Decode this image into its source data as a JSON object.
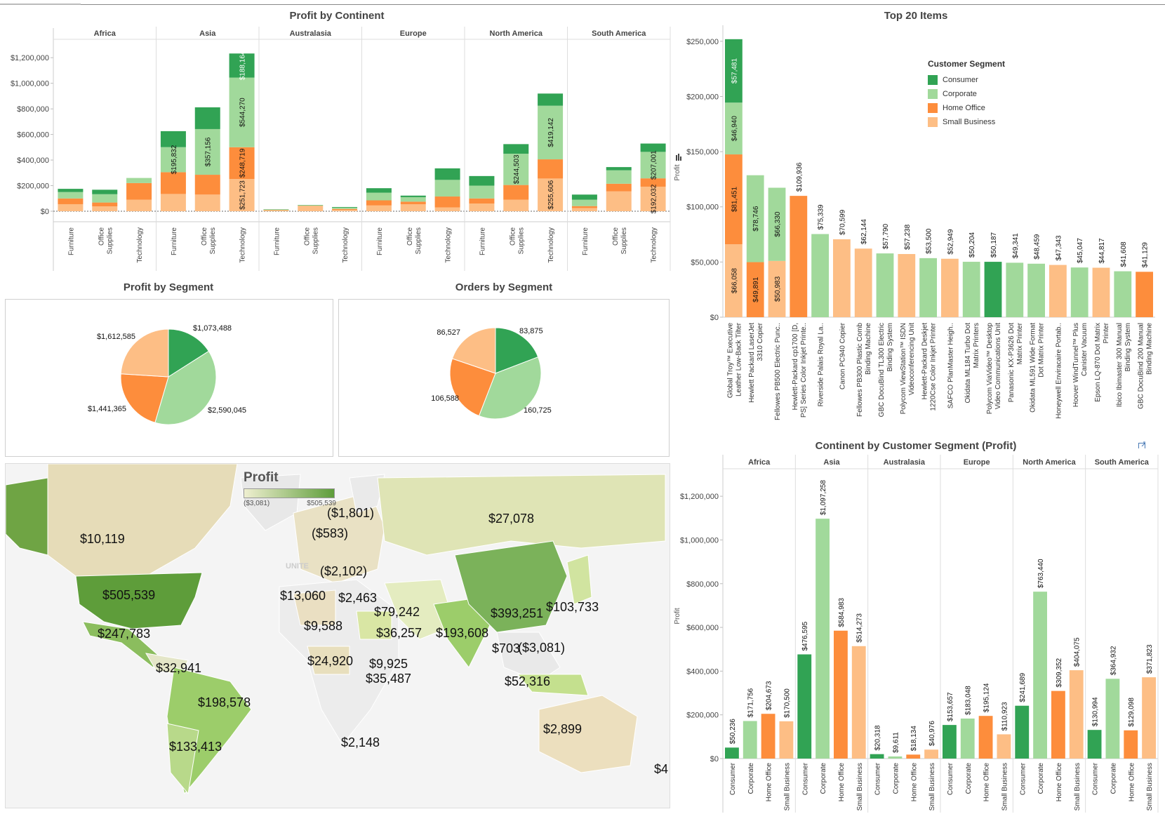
{
  "colors": {
    "consumer": "#31a354",
    "corporate": "#a1d99b",
    "home_office": "#fd8d3c",
    "small_business": "#fdbe85"
  },
  "panels": {
    "profit_by_continent": "Profit by Continent",
    "top20": "Top 20 Items",
    "profit_by_segment": "Profit by Segment",
    "orders_by_segment": "Orders by Segment",
    "continent_by_segment": "Continent by Customer Segment (Profit)"
  },
  "legend": {
    "title": "Customer Segment",
    "items": [
      "Consumer",
      "Corporate",
      "Home Office",
      "Small Business"
    ]
  },
  "map": {
    "title": "Profit",
    "min_label": "($3,081)",
    "max_label": "$505,539",
    "labels": [
      "$10,119",
      "$505,539",
      "$247,783",
      "$32,941",
      "$198,578",
      "$133,413",
      "($1,801)",
      "($583)",
      "($2,102)",
      "$13,060",
      "$2,463",
      "$79,242",
      "$9,588",
      "$36,257",
      "$24,920",
      "$9,925",
      "$35,487",
      "$2,148",
      "$27,078",
      "$193,608",
      "$393,251",
      "$103,733",
      "$703",
      "($3,081)",
      "$52,316",
      "$2,899",
      "$4"
    ],
    "faded_label": "UNITE"
  },
  "chart_data": [
    {
      "type": "bar",
      "stacked": true,
      "title": "Profit by Continent",
      "ylabel": "",
      "ylim": [
        0,
        1300000
      ],
      "yticks": [
        "$0",
        "$200,000",
        "$400,000",
        "$600,000",
        "$800,000",
        "$1,000,000",
        "$1,200,000"
      ],
      "ytick_values": [
        0,
        200000,
        400000,
        600000,
        800000,
        1000000,
        1200000
      ],
      "groups": [
        "Africa",
        "Asia",
        "Australasia",
        "Europe",
        "North America",
        "South America"
      ],
      "categories": [
        "Furniture",
        "Office Supplies",
        "Technology"
      ],
      "category_labels": [
        [
          "Furniture"
        ],
        [
          "Office",
          "Supplies"
        ],
        [
          "Technology"
        ]
      ],
      "series_order": [
        "Small Business",
        "Home Office",
        "Corporate",
        "Consumer"
      ],
      "values": [
        [
          [
            55000,
            45000,
            50000,
            25000
          ],
          [
            38000,
            30000,
            65000,
            35000
          ],
          [
            90000,
            130000,
            40000,
            0
          ]
        ],
        [
          [
            135000,
            170000,
            195832,
            125000
          ],
          [
            130000,
            155000,
            357156,
            170000
          ],
          [
            251723,
            248719,
            544270,
            188164
          ]
        ],
        [
          [
            5000,
            4000,
            4000,
            2000
          ],
          [
            40000,
            3000,
            4000,
            2000
          ],
          [
            10000,
            8000,
            10000,
            5000
          ]
        ],
        [
          [
            45000,
            40000,
            60000,
            35000
          ],
          [
            55000,
            20000,
            35000,
            12000
          ],
          [
            30000,
            85000,
            130000,
            90000
          ]
        ],
        [
          [
            60000,
            40000,
            100000,
            75000
          ],
          [
            90000,
            115000,
            244503,
            75000
          ],
          [
            255606,
            150000,
            419142,
            95000
          ]
        ],
        [
          [
            25000,
            15000,
            50000,
            40000
          ],
          [
            155000,
            60000,
            105000,
            25000
          ],
          [
            192032,
            65000,
            207001,
            65000
          ]
        ]
      ],
      "data_labels": [
        {
          "g": 1,
          "c": 0,
          "s": 2,
          "text": "$195,832"
        },
        {
          "g": 1,
          "c": 1,
          "s": 2,
          "text": "$357,156"
        },
        {
          "g": 1,
          "c": 2,
          "s": 0,
          "text": "$251,723"
        },
        {
          "g": 1,
          "c": 2,
          "s": 1,
          "text": "$248,719"
        },
        {
          "g": 1,
          "c": 2,
          "s": 2,
          "text": "$544,270"
        },
        {
          "g": 1,
          "c": 2,
          "s": 3,
          "text": "$188,164"
        },
        {
          "g": 4,
          "c": 1,
          "s": 2,
          "text": "$244,503"
        },
        {
          "g": 4,
          "c": 2,
          "s": 0,
          "text": "$255,606"
        },
        {
          "g": 4,
          "c": 2,
          "s": 2,
          "text": "$419,142"
        },
        {
          "g": 5,
          "c": 2,
          "s": 0,
          "text": "$192,032"
        },
        {
          "g": 5,
          "c": 2,
          "s": 2,
          "text": "$207,001"
        }
      ]
    },
    {
      "type": "bar",
      "stacked": true,
      "title": "Top 20 Items",
      "ylabel": "Profit",
      "ylim": [
        0,
        262000
      ],
      "yticks": [
        "$0",
        "$50,000",
        "$100,000",
        "$150,000",
        "$200,000",
        "$250,000"
      ],
      "ytick_values": [
        0,
        50000,
        100000,
        150000,
        200000,
        250000
      ],
      "categories": [
        [
          "Global Troy™ Executive",
          "Leather Low-Back Tilter"
        ],
        [
          "Hewlett Packard LaserJet",
          "3310 Copier"
        ],
        [
          "Fellowes PB500 Electric Punc.."
        ],
        [
          "Hewlett-Packard cp1700 [D,",
          "PS] Series Color Inkjet Printe.."
        ],
        [
          "Riverside Palais Royal La.."
        ],
        [
          "Canon PC940 Copier"
        ],
        [
          "Fellowes PB300 Plastic Comb",
          "Binding Machine"
        ],
        [
          "GBC DocuBind TL300 Electric",
          "Binding System"
        ],
        [
          "Polycom ViewStation™ ISDN",
          "Videoconferencing Unit"
        ],
        [
          "Hewlett-Packard Deskjet",
          "1220Cse Color Inkjet Printer"
        ],
        [
          "SAFCO PlanMaster Heigh.."
        ],
        [
          "Okidata ML184 Turbo Dot",
          "Matrix Printers"
        ],
        [
          "Polycom ViaVideo™ Desktop",
          "Video Communications Unit"
        ],
        [
          "Panasonic KX-P3626 Dot",
          "Matrix Printer"
        ],
        [
          "Okidata ML591 Wide Format",
          "Dot Matrix Printer"
        ],
        [
          "Honeywell Enviracaire Portab.."
        ],
        [
          "Hoover WindTunnel™ Plus",
          "Canister Vacuum"
        ],
        [
          "Epson LQ-870 Dot Matrix",
          "Printer"
        ],
        [
          "Ibico Ibimaster 300 Manual",
          "Binding System"
        ],
        [
          "GBC DocuBind 200 Manual",
          "Binding Machine"
        ]
      ],
      "series_order": [
        "Small Business",
        "Home Office",
        "Corporate",
        "Consumer"
      ],
      "values": [
        [
          66058,
          81451,
          46940,
          57481
        ],
        [
          0,
          49891,
          78746,
          0
        ],
        [
          50983,
          0,
          66330,
          0
        ],
        [
          0,
          109936,
          0,
          0
        ],
        [
          0,
          0,
          75339,
          0
        ],
        [
          70599,
          0,
          0,
          0
        ],
        [
          62144,
          0,
          0,
          0
        ],
        [
          0,
          0,
          57790,
          0
        ],
        [
          57238,
          0,
          0,
          0
        ],
        [
          0,
          0,
          53500,
          0
        ],
        [
          52949,
          0,
          0,
          0
        ],
        [
          0,
          0,
          50204,
          0
        ],
        [
          0,
          0,
          0,
          50187
        ],
        [
          0,
          0,
          49341,
          0
        ],
        [
          0,
          0,
          48459,
          0
        ],
        [
          47343,
          0,
          0,
          0
        ],
        [
          0,
          0,
          45047,
          0
        ],
        [
          44817,
          0,
          0,
          0
        ],
        [
          0,
          0,
          41608,
          0
        ],
        [
          0,
          41129,
          0,
          0
        ]
      ],
      "inside_labels": [
        {
          "i": 0,
          "s": 0,
          "text": "$66,058"
        },
        {
          "i": 0,
          "s": 1,
          "text": "$81,451"
        },
        {
          "i": 0,
          "s": 2,
          "text": "$46,940"
        },
        {
          "i": 0,
          "s": 3,
          "text": "$57,481"
        },
        {
          "i": 1,
          "s": 1,
          "text": "$49,891"
        },
        {
          "i": 1,
          "s": 2,
          "text": "$78,746"
        },
        {
          "i": 2,
          "s": 0,
          "text": "$50,983"
        },
        {
          "i": 2,
          "s": 2,
          "text": "$66,330"
        }
      ],
      "top_labels": [
        "",
        "",
        "",
        "$109,936",
        "$75,339",
        "$70,599",
        "$62,144",
        "$57,790",
        "$57,238",
        "$53,500",
        "$52,949",
        "$50,204",
        "$50,187",
        "$49,341",
        "$48,459",
        "$47,343",
        "$45,047",
        "$44,817",
        "$41,608",
        "$41,129"
      ]
    },
    {
      "type": "pie",
      "title": "Profit by Segment",
      "labels": [
        "Consumer",
        "Corporate",
        "Home Office",
        "Small Business"
      ],
      "values": [
        1073488,
        2590045,
        1441365,
        1612585
      ],
      "value_labels": [
        "$1,073,488",
        "$2,590,045",
        "$1,441,365",
        "$1,612,585"
      ]
    },
    {
      "type": "pie",
      "title": "Orders by Segment",
      "labels": [
        "Consumer",
        "Corporate",
        "Home Office",
        "Small Business"
      ],
      "values": [
        83875,
        160725,
        106588,
        86527
      ],
      "value_labels": [
        "83,875",
        "160,725",
        "106,588",
        "86,527"
      ]
    },
    {
      "type": "bar",
      "title": "Continent by Customer Segment (Profit)",
      "ylabel": "Profit",
      "ylim": [
        0,
        1300000
      ],
      "yticks": [
        "$0",
        "$200,000",
        "$400,000",
        "$600,000",
        "$800,000",
        "$1,000,000",
        "$1,200,000"
      ],
      "ytick_values": [
        0,
        200000,
        400000,
        600000,
        800000,
        1000000,
        1200000
      ],
      "groups": [
        "Africa",
        "Asia",
        "Australasia",
        "Europe",
        "North America",
        "South America"
      ],
      "categories": [
        "Consumer",
        "Corporate",
        "Home Office",
        "Small Business"
      ],
      "values": [
        [
          50236,
          171756,
          204673,
          170500
        ],
        [
          476595,
          1097258,
          584983,
          514273
        ],
        [
          20318,
          9611,
          18134,
          40976
        ],
        [
          153657,
          183048,
          195124,
          110923
        ],
        [
          241689,
          763440,
          309352,
          404075
        ],
        [
          130994,
          364932,
          129098,
          371823
        ]
      ],
      "value_labels": [
        [
          "$50,236",
          "$171,756",
          "$204,673",
          "$170,500"
        ],
        [
          "$476,595",
          "$1,097,258",
          "$584,983",
          "$514,273"
        ],
        [
          "$20,318",
          "$9,611",
          "$18,134",
          "$40,976"
        ],
        [
          "$153,657",
          "$183,048",
          "$195,124",
          "$110,923"
        ],
        [
          "$241,689",
          "$763,440",
          "$309,352",
          "$404,075"
        ],
        [
          "$130,994",
          "$364,932",
          "$129,098",
          "$371,823"
        ]
      ],
      "category_labels": [
        "Consumer",
        "Corporate",
        "Home Office",
        "Small Business"
      ]
    }
  ]
}
